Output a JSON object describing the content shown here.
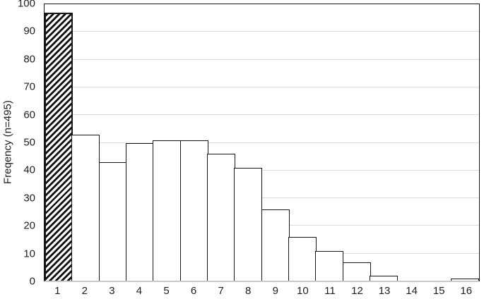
{
  "chart_data": {
    "type": "bar",
    "subtype": "histogram",
    "title": "",
    "xlabel": "",
    "ylabel": "Freqency (n=495)",
    "categories": [
      "1",
      "2",
      "3",
      "4",
      "5",
      "6",
      "7",
      "8",
      "9",
      "10",
      "11",
      "12",
      "13",
      "14",
      "15",
      "16"
    ],
    "values": [
      97,
      53,
      43,
      50,
      51,
      51,
      46,
      41,
      26,
      16,
      11,
      7,
      2,
      0,
      0,
      1
    ],
    "ylim": [
      0,
      100
    ],
    "yticks": [
      0,
      10,
      20,
      30,
      40,
      50,
      60,
      70,
      80,
      90,
      100
    ],
    "grid": "horizontal",
    "legend": "none",
    "gap_between_bars": false,
    "hatched_categories": [
      "1"
    ],
    "hatch_style": "diagonal-stripes",
    "bar_fill": "#ffffff",
    "bar_border": "#161616"
  },
  "colors": {
    "background": "#ffffff",
    "gridline": "#dcdcdc",
    "x_axis_line": "#c9c9c9",
    "plot_border": "#161616",
    "text": "#1f1f1f"
  }
}
